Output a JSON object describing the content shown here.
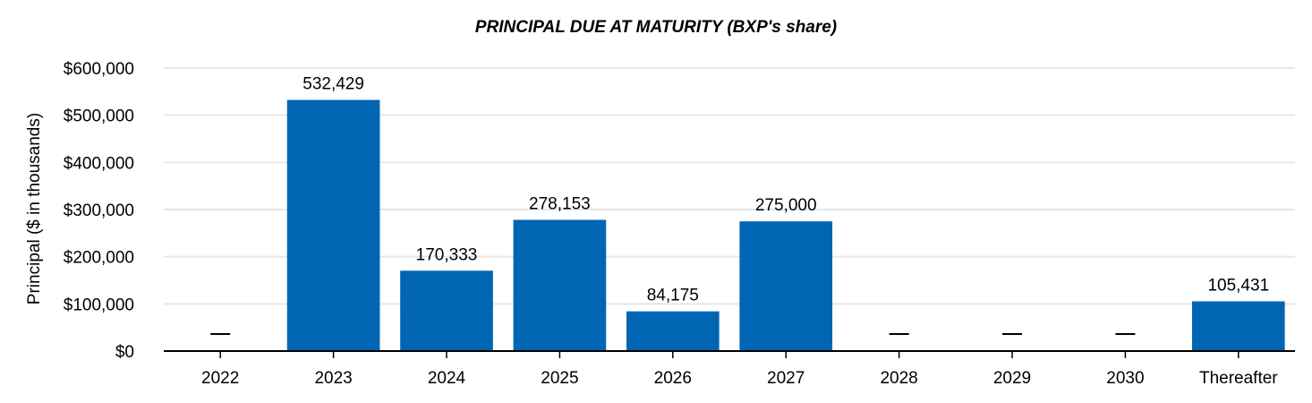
{
  "chart_data": {
    "type": "bar",
    "title": "PRINCIPAL DUE AT MATURITY (BXP's share)",
    "ylabel": "Principal ($ in thousands)",
    "xlabel": "",
    "categories": [
      "2022",
      "2023",
      "2024",
      "2025",
      "2026",
      "2027",
      "2028",
      "2029",
      "2030",
      "Thereafter"
    ],
    "values": [
      0,
      532429,
      170333,
      278153,
      84175,
      275000,
      0,
      0,
      0,
      105431
    ],
    "data_labels": [
      "—",
      "532,429",
      "170,333",
      "278,153",
      "84,175",
      "275,000",
      "—",
      "—",
      "—",
      "105,431"
    ],
    "y_ticks": [
      0,
      100000,
      200000,
      300000,
      400000,
      500000,
      600000
    ],
    "y_tick_labels": [
      "$0",
      "$100,000",
      "$200,000",
      "$300,000",
      "$400,000",
      "$500,000",
      "$600,000"
    ],
    "ylim": [
      0,
      600000
    ],
    "grid": true,
    "legend": "none",
    "colors": {
      "bar": "#0066b3",
      "grid": "#e6e6e6",
      "axis": "#000000"
    }
  }
}
